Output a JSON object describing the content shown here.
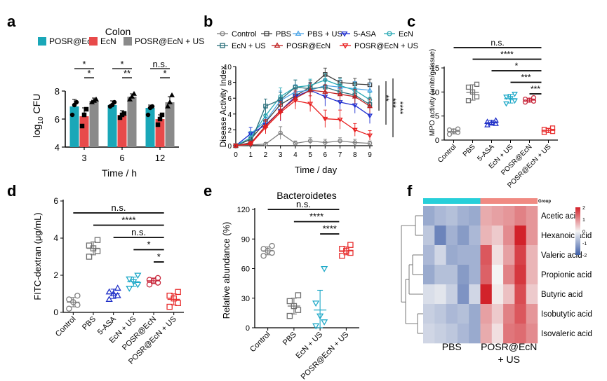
{
  "figure": {
    "panel_letters": [
      "a",
      "b",
      "c",
      "d",
      "e",
      "f"
    ]
  },
  "colors": {
    "posr": "#1aa7b8",
    "ecn": "#e84a4a",
    "posr_us": "#8a8a8a",
    "b_control": "#808080",
    "b_pbs": "#404040",
    "b_pbs_us": "#4da6e8",
    "b_5asa": "#1f2fd1",
    "b_ecn": "#2aa9b5",
    "b_ecn_us": "#2a6e7a",
    "b_posr": "#c02020",
    "b_posr_us": "#e81e1e",
    "c_control": "#808080",
    "c_pbs": "#707070",
    "c_5asa": "#2030c8",
    "c_ecn_us": "#1fa9c8",
    "c_posr": "#c8283c",
    "c_posr_us": "#e83030",
    "heat_low": "#3e5fa8",
    "heat_mid": "#f4f4f4",
    "heat_high": "#d2222a",
    "group_pbs": "#27cfd9",
    "group_posr": "#f08a82"
  },
  "chart_data": [
    {
      "panel": "a",
      "type": "bar",
      "title": "Colon",
      "xlabel": "Time / h",
      "ylabel": "log10 CFU",
      "ylabel_main": "log",
      "ylabel_sub": "10",
      "ylabel_rest": " CFU",
      "ylim": [
        4,
        8
      ],
      "yticks": [
        4,
        6,
        8
      ],
      "categories": [
        "3",
        "6",
        "12"
      ],
      "series": [
        {
          "name": "POSR@EcN",
          "color_key": "posr",
          "values": [
            6.9,
            7.0,
            6.8
          ],
          "err": [
            0.5,
            0.3,
            0.2
          ],
          "points": [
            [
              6.3,
              7.0,
              7.2
            ],
            [
              6.9,
              7.0,
              7.2
            ],
            [
              6.3,
              6.8,
              6.9
            ]
          ]
        },
        {
          "name": "EcN",
          "color_key": "ecn",
          "values": [
            6.2,
            6.3,
            6.0
          ],
          "err": [
            0.6,
            0.3,
            0.3
          ],
          "points": [
            [
              5.5,
              6.3,
              6.7
            ],
            [
              6.1,
              6.3,
              6.4
            ],
            [
              5.6,
              6.0,
              6.3
            ]
          ]
        },
        {
          "name": "POSR@EcN + US",
          "color_key": "posr_us",
          "values": [
            7.3,
            7.6,
            7.2
          ],
          "err": [
            0.2,
            0.2,
            0.4
          ],
          "points": [
            [
              7.2,
              7.3,
              7.4
            ],
            [
              7.4,
              7.6,
              7.8
            ],
            [
              6.9,
              7.2,
              7.7
            ]
          ]
        }
      ],
      "significance": [
        {
          "label": "*",
          "level": 1,
          "group": 0,
          "from": 0,
          "to": 2
        },
        {
          "label": "*",
          "level": 0,
          "group": 0,
          "from": 1,
          "to": 2
        },
        {
          "label": "*",
          "level": 1,
          "group": 1,
          "from": 0,
          "to": 2
        },
        {
          "label": "**",
          "level": 0,
          "group": 1,
          "from": 1,
          "to": 2
        },
        {
          "label": "n.s.",
          "level": 1,
          "group": 2,
          "from": 0,
          "to": 2
        },
        {
          "label": "*",
          "level": 0,
          "group": 2,
          "from": 1,
          "to": 2
        }
      ]
    },
    {
      "panel": "b",
      "type": "line",
      "xlabel": "Time / day",
      "ylabel": "Disease Activity Index",
      "x": [
        0,
        1,
        2,
        3,
        4,
        5,
        6,
        7,
        8,
        9
      ],
      "xlim": [
        0,
        9
      ],
      "ylim": [
        0,
        10
      ],
      "yticks": [
        0,
        2,
        4,
        6,
        8,
        10
      ],
      "series": [
        {
          "name": "Control",
          "color_key": "b_control",
          "marker": "circle",
          "values": [
            0,
            0.1,
            0.2,
            1.6,
            0.3,
            0.6,
            0.4,
            0.6,
            0.4,
            0.3
          ],
          "err": [
            0,
            0.2,
            0.2,
            0.8,
            0.3,
            0.4,
            0.4,
            0.4,
            0.4,
            0.3
          ]
        },
        {
          "name": "PBS",
          "color_key": "b_pbs",
          "marker": "square",
          "values": [
            0,
            0.8,
            3.0,
            5.2,
            6.3,
            7.4,
            9.0,
            8.0,
            7.8,
            7.7
          ],
          "err": [
            0,
            0.6,
            0.9,
            0.9,
            0.9,
            0.8,
            0.8,
            0.6,
            0.7,
            0.7
          ]
        },
        {
          "name": "PBS + US",
          "color_key": "b_pbs_us",
          "marker": "triangle-up",
          "values": [
            0,
            1.5,
            3.1,
            5.7,
            6.8,
            7.0,
            7.6,
            7.4,
            7.2,
            7.0
          ],
          "err": [
            0,
            0.8,
            0.9,
            1.2,
            0.9,
            0.8,
            0.8,
            0.9,
            0.9,
            0.9
          ]
        },
        {
          "name": "5-ASA",
          "color_key": "b_5asa",
          "marker": "triangle-down",
          "values": [
            0,
            1.5,
            2.6,
            4.4,
            6.2,
            7.0,
            6.2,
            5.5,
            5.1,
            3.8
          ],
          "err": [
            0,
            0.8,
            0.9,
            1.3,
            1.0,
            0.9,
            1.2,
            1.0,
            1.0,
            1.0
          ]
        },
        {
          "name": "EcN",
          "color_key": "b_ecn",
          "marker": "circle",
          "values": [
            0,
            1.0,
            3.8,
            6.2,
            7.4,
            7.6,
            8.3,
            7.6,
            7.0,
            5.8
          ],
          "err": [
            0,
            0.8,
            1.0,
            1.1,
            0.9,
            0.8,
            0.8,
            0.9,
            0.9,
            0.9
          ]
        },
        {
          "name": "EcN + US",
          "color_key": "b_ecn_us",
          "marker": "square",
          "values": [
            0,
            0.4,
            5.0,
            5.8,
            7.4,
            7.2,
            7.4,
            6.8,
            6.4,
            5.2
          ],
          "err": [
            0,
            0.4,
            0.9,
            0.9,
            0.9,
            0.8,
            0.9,
            0.9,
            0.9,
            0.9
          ]
        },
        {
          "name": "POSR@EcN",
          "color_key": "b_posr",
          "marker": "triangle-up",
          "values": [
            0,
            0.3,
            2.5,
            4.4,
            6.0,
            7.0,
            6.8,
            6.5,
            6.2,
            5.0
          ],
          "err": [
            0,
            0.3,
            0.8,
            1.2,
            1.0,
            0.9,
            0.9,
            0.9,
            0.9,
            0.9
          ]
        },
        {
          "name": "POSR@EcN + US",
          "color_key": "b_posr_us",
          "marker": "triangle-down",
          "values": [
            0,
            0.2,
            2.3,
            4.2,
            5.7,
            5.3,
            3.4,
            3.3,
            2.0,
            1.3
          ],
          "err": [
            0,
            0.3,
            0.8,
            1.0,
            1.1,
            1.0,
            1.1,
            1.2,
            0.8,
            0.6
          ]
        }
      ],
      "significance": [
        "**",
        "***",
        "****"
      ]
    },
    {
      "panel": "c",
      "type": "scatter",
      "ylabel": "MPO activity (unite/g tissue)",
      "ylim": [
        0,
        15
      ],
      "yticks": [
        0,
        5,
        10,
        15
      ],
      "categories": [
        "Control",
        "PBS",
        "5-ASA",
        "EcN + US",
        "POSR@EcN",
        "POSR@EcN + US"
      ],
      "series": [
        {
          "name": "Control",
          "color_key": "c_control",
          "marker": "circle",
          "mean": 1.8,
          "err": 0.5,
          "points": [
            1.2,
            1.6,
            1.9,
            2.1,
            2.3
          ]
        },
        {
          "name": "PBS",
          "color_key": "c_pbs",
          "marker": "square",
          "mean": 9.9,
          "err": 1.6,
          "points": [
            8.2,
            9.0,
            10.0,
            11.0,
            11.6
          ]
        },
        {
          "name": "5-ASA",
          "color_key": "c_5asa",
          "marker": "triangle-up",
          "mean": 3.6,
          "err": 0.5,
          "points": [
            3.1,
            3.4,
            3.6,
            3.8,
            4.1
          ]
        },
        {
          "name": "EcN + US",
          "color_key": "c_ecn_us",
          "marker": "triangle-down",
          "mean": 8.6,
          "err": 0.9,
          "points": [
            7.6,
            8.2,
            8.7,
            9.0,
            9.6
          ]
        },
        {
          "name": "POSR@EcN",
          "color_key": "c_posr",
          "marker": "circle",
          "mean": 8.3,
          "err": 0.4,
          "points": [
            7.9,
            8.1,
            8.3,
            8.5,
            8.8
          ]
        },
        {
          "name": "POSR@EcN + US",
          "color_key": "c_posr_us",
          "marker": "square",
          "mean": 2.0,
          "err": 0.4,
          "points": [
            1.6,
            1.8,
            2.0,
            2.2,
            2.5
          ]
        }
      ],
      "significance": [
        {
          "label": "n.s.",
          "from": 0,
          "to": 5,
          "level": 5
        },
        {
          "label": "****",
          "from": 1,
          "to": 5,
          "level": 4
        },
        {
          "label": "*",
          "from": 2,
          "to": 5,
          "level": 3
        },
        {
          "label": "***",
          "from": 3,
          "to": 5,
          "level": 2
        },
        {
          "label": "***",
          "from": 4,
          "to": 5,
          "level": 1
        }
      ]
    },
    {
      "panel": "d",
      "type": "scatter",
      "ylabel": "FITC-dextran (μg/mL)",
      "ylim": [
        0,
        6
      ],
      "yticks": [
        0,
        2,
        4,
        6
      ],
      "categories": [
        "Control",
        "PBS",
        "5-ASA",
        "EcN + US",
        "POSR@EcN",
        "POSR@EcN + US"
      ],
      "series": [
        {
          "name": "Control",
          "color_key": "c_control",
          "marker": "circle",
          "mean": 0.55,
          "err": 0.25,
          "points": [
            0.2,
            0.4,
            0.55,
            0.7,
            0.9
          ]
        },
        {
          "name": "PBS",
          "color_key": "c_pbs",
          "marker": "square",
          "mean": 3.45,
          "err": 0.35,
          "points": [
            3.0,
            3.3,
            3.45,
            3.6,
            3.9
          ]
        },
        {
          "name": "5-ASA",
          "color_key": "c_5asa",
          "marker": "triangle-up",
          "mean": 1.0,
          "err": 0.25,
          "points": [
            0.7,
            0.9,
            1.0,
            1.1,
            1.3
          ]
        },
        {
          "name": "EcN + US",
          "color_key": "c_ecn_us",
          "marker": "triangle-down",
          "mean": 1.65,
          "err": 0.25,
          "points": [
            1.3,
            1.5,
            1.65,
            1.8,
            2.0
          ]
        },
        {
          "name": "POSR@EcN",
          "color_key": "c_posr",
          "marker": "circle",
          "mean": 1.7,
          "err": 0.15,
          "points": [
            1.5,
            1.6,
            1.7,
            1.75,
            1.85
          ]
        },
        {
          "name": "POSR@EcN + US",
          "color_key": "c_posr_us",
          "marker": "square",
          "mean": 0.7,
          "err": 0.3,
          "points": [
            0.3,
            0.5,
            0.75,
            0.9,
            1.1
          ]
        }
      ],
      "significance": [
        {
          "label": "n.s.",
          "from": 0,
          "to": 5,
          "level": 5
        },
        {
          "label": "****",
          "from": 1,
          "to": 5,
          "level": 4
        },
        {
          "label": "n.s.",
          "from": 2,
          "to": 5,
          "level": 3
        },
        {
          "label": "*",
          "from": 3,
          "to": 5,
          "level": 2
        },
        {
          "label": "*",
          "from": 4,
          "to": 5,
          "level": 1
        }
      ]
    },
    {
      "panel": "e",
      "type": "scatter",
      "title": "Bacteroidetes",
      "ylabel": "Relative abundance (%)",
      "ylim": [
        0,
        120
      ],
      "yticks": [
        0,
        30,
        60,
        90,
        120
      ],
      "categories": [
        "Control",
        "PBS",
        "EcN + US",
        "POSR@EcN + US"
      ],
      "series": [
        {
          "name": "Control",
          "color_key": "c_control",
          "marker": "circle",
          "mean": 78,
          "err": 4,
          "points": [
            73,
            76,
            78,
            80,
            83
          ]
        },
        {
          "name": "PBS",
          "color_key": "c_pbs",
          "marker": "square",
          "mean": 22,
          "err": 8,
          "points": [
            12,
            18,
            22,
            27,
            33
          ]
        },
        {
          "name": "EcN + US",
          "color_key": "c_ecn_us",
          "marker": "triangle-down",
          "mean": 18,
          "err": 20,
          "points": [
            2,
            6,
            12,
            25,
            60
          ]
        },
        {
          "name": "POSR@EcN + US",
          "color_key": "c_posr_us",
          "marker": "square",
          "mean": 78,
          "err": 4,
          "points": [
            73,
            76,
            78,
            80,
            84
          ]
        }
      ],
      "significance": [
        {
          "label": "n.s.",
          "from": 0,
          "to": 3,
          "level": 3
        },
        {
          "label": "****",
          "from": 1,
          "to": 3,
          "level": 2
        },
        {
          "label": "****",
          "from": 2,
          "to": 3,
          "level": 1
        }
      ]
    },
    {
      "panel": "f",
      "type": "heatmap",
      "group_label": "Group",
      "groups": [
        {
          "name": "PBS",
          "color_key": "group_pbs",
          "columns": 5
        },
        {
          "name": "POSR@EcN + US",
          "color_key": "group_posr",
          "columns": 5
        }
      ],
      "rows": [
        "Acetic acid",
        "Hexanoic acid",
        "Valeric acid",
        "Propionic acid",
        "Butyric acid",
        "Isobutytic acid",
        "Isovaleric acid"
      ],
      "values": [
        [
          -1.0,
          -0.8,
          -0.7,
          -0.9,
          -1.0,
          0.7,
          0.8,
          0.9,
          1.1,
          0.9
        ],
        [
          -0.6,
          -1.5,
          -0.9,
          -1.2,
          -0.8,
          0.6,
          0.4,
          1.0,
          2.0,
          0.9
        ],
        [
          -0.8,
          -0.4,
          -1.0,
          -0.9,
          -0.9,
          1.5,
          0.2,
          0.8,
          1.7,
          0.6
        ],
        [
          -1.0,
          -0.7,
          -0.7,
          -1.2,
          -0.9,
          1.4,
          0.0,
          1.1,
          1.8,
          0.6
        ],
        [
          -0.3,
          -0.2,
          -0.5,
          -1.3,
          -0.4,
          2.0,
          0.1,
          0.5,
          1.6,
          0.4
        ],
        [
          -0.5,
          -0.6,
          -0.8,
          -0.7,
          -1.0,
          0.8,
          0.4,
          1.1,
          1.5,
          0.9
        ],
        [
          -0.4,
          -0.5,
          -0.6,
          -0.8,
          -1.0,
          0.7,
          0.2,
          1.2,
          1.3,
          1.0
        ]
      ],
      "scale_ticks": [
        2,
        1,
        0,
        -1,
        -2
      ],
      "scale_range": [
        -2,
        2
      ]
    }
  ]
}
